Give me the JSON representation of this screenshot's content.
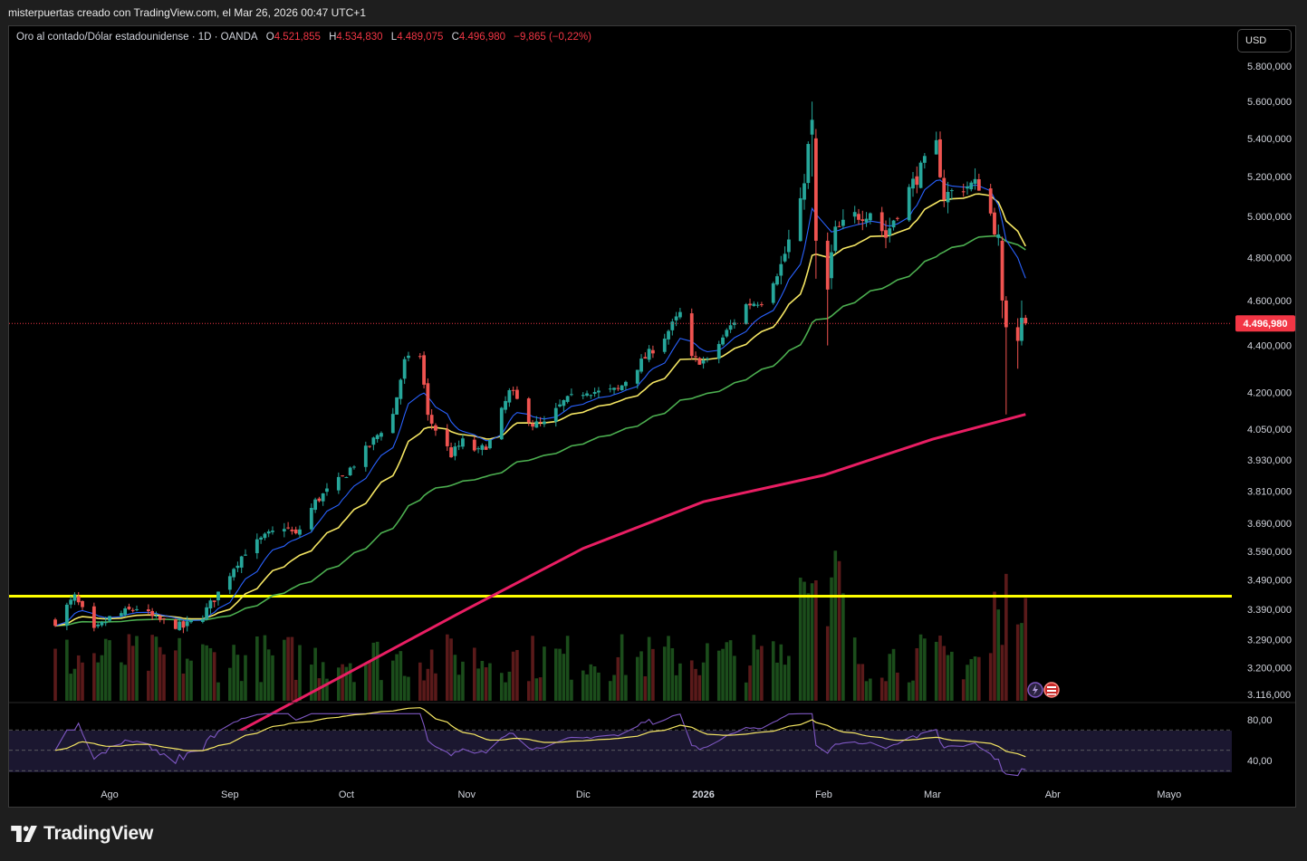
{
  "header": {
    "author_line": "misterpuertas creado con TradingView.com, el Mar 26, 2026 00:47 UTC+1"
  },
  "legend": {
    "symbol": "Oro al contado/Dólar estadounidense · 1D · OANDA",
    "open_label": "O",
    "open": "4.521,855",
    "high_label": "H",
    "high": "4.534,830",
    "low_label": "L",
    "low": "4.489,075",
    "close_label": "C",
    "close": "4.496,980",
    "change": "−9,865 (−0,22%)"
  },
  "currency_button": "USD",
  "price_badge": "4.496,980",
  "footer": {
    "brand": "TradingView"
  },
  "colors": {
    "up": "#26a69a",
    "down": "#ef5350",
    "ema_fast": "#2962ff",
    "ema_mid": "#f5e663",
    "ma_slow": "#4caf50",
    "ma_200": "#e91e63",
    "support": "#ffff00",
    "price_line": "#f23645",
    "rsi": "#7e57c2",
    "rsi_ma": "#f5e663"
  },
  "chart_data": {
    "type": "candlestick",
    "symbol": "XAUUSD",
    "timeframe": "1D",
    "y_axis": {
      "scale": "log",
      "ticks": [
        "5.800,000",
        "5.600,000",
        "5.400,000",
        "5.200,000",
        "5.000,000",
        "4.800,000",
        "4.600,000",
        "4.400,000",
        "4.200,000",
        "4.050,000",
        "3.930,000",
        "3.810,000",
        "3.690,000",
        "3.590,000",
        "3.490,000",
        "3.390,000",
        "3.290,000",
        "3.200,000",
        "3.116,000"
      ],
      "tick_values": [
        5800,
        5600,
        5400,
        5200,
        5000,
        4800,
        4600,
        4400,
        4200,
        4050,
        3930,
        3810,
        3690,
        3590,
        3490,
        3390,
        3290,
        3200,
        3116
      ]
    },
    "x_axis": {
      "labels": [
        "Ago",
        "Sep",
        "Oct",
        "Nov",
        "Dic",
        "2026",
        "Feb",
        "Mar",
        "Abr",
        "Mayo"
      ],
      "label_dates": [
        "2025-08-01",
        "2025-09-01",
        "2025-10-01",
        "2025-11-01",
        "2025-12-01",
        "2026-01-01",
        "2026-02-01",
        "2026-03-01",
        "2026-04-01",
        "2026-05-01"
      ]
    },
    "anchors": [
      [
        "2025-07-18",
        3350
      ],
      [
        "2025-07-23",
        3430
      ],
      [
        "2025-07-28",
        3315
      ],
      [
        "2025-08-01",
        3360
      ],
      [
        "2025-08-08",
        3395
      ],
      [
        "2025-08-13",
        3355
      ],
      [
        "2025-08-20",
        3330
      ],
      [
        "2025-08-25",
        3370
      ],
      [
        "2025-08-29",
        3445
      ],
      [
        "2025-09-02",
        3535
      ],
      [
        "2025-09-05",
        3590
      ],
      [
        "2025-09-10",
        3640
      ],
      [
        "2025-09-15",
        3680
      ],
      [
        "2025-09-18",
        3645
      ],
      [
        "2025-09-23",
        3770
      ],
      [
        "2025-09-30",
        3860
      ],
      [
        "2025-10-07",
        3985
      ],
      [
        "2025-10-13",
        4110
      ],
      [
        "2025-10-16",
        4330
      ],
      [
        "2025-10-20",
        4360
      ],
      [
        "2025-10-22",
        4100
      ],
      [
        "2025-10-28",
        3950
      ],
      [
        "2025-10-31",
        4000
      ],
      [
        "2025-11-04",
        3960
      ],
      [
        "2025-11-07",
        4000
      ],
      [
        "2025-11-12",
        4200
      ],
      [
        "2025-11-13",
        4190
      ],
      [
        "2025-11-18",
        4070
      ],
      [
        "2025-11-21",
        4070
      ],
      [
        "2025-11-26",
        4160
      ],
      [
        "2025-12-02",
        4210
      ],
      [
        "2025-12-05",
        4200
      ],
      [
        "2025-12-10",
        4210
      ],
      [
        "2025-12-15",
        4310
      ],
      [
        "2025-12-22",
        4440
      ],
      [
        "2025-12-26",
        4540
      ],
      [
        "2025-12-29",
        4340
      ],
      [
        "2026-01-02",
        4330
      ],
      [
        "2026-01-07",
        4460
      ],
      [
        "2026-01-12",
        4580
      ],
      [
        "2026-01-16",
        4600
      ],
      [
        "2026-01-21",
        4760
      ],
      [
        "2026-01-26",
        5050
      ],
      [
        "2026-01-29",
        5500
      ],
      [
        "2026-01-30",
        4900
      ],
      [
        "2026-02-02",
        4700
      ],
      [
        "2026-02-04",
        4920
      ],
      [
        "2026-02-09",
        5000
      ],
      [
        "2026-02-13",
        5030
      ],
      [
        "2026-02-17",
        4900
      ],
      [
        "2026-02-20",
        5030
      ],
      [
        "2026-02-25",
        5200
      ],
      [
        "2026-03-02",
        5360
      ],
      [
        "2026-03-04",
        5100
      ],
      [
        "2026-03-09",
        5150
      ],
      [
        "2026-03-13",
        5160
      ],
      [
        "2026-03-16",
        5010
      ],
      [
        "2026-03-19",
        4820
      ],
      [
        "2026-03-20",
        4500
      ],
      [
        "2026-03-23",
        4430
      ],
      [
        "2026-03-24",
        4480
      ],
      [
        "2026-03-25",
        4497
      ]
    ],
    "last_candle": {
      "open": 4521.855,
      "high": 4534.83,
      "low": 4489.075,
      "close": 4496.98
    },
    "support_level": 3434,
    "rsi": {
      "axis_ticks": [
        "80,00",
        "40,00"
      ],
      "upper_band": 70,
      "lower_band": 30,
      "mid": 50
    }
  }
}
